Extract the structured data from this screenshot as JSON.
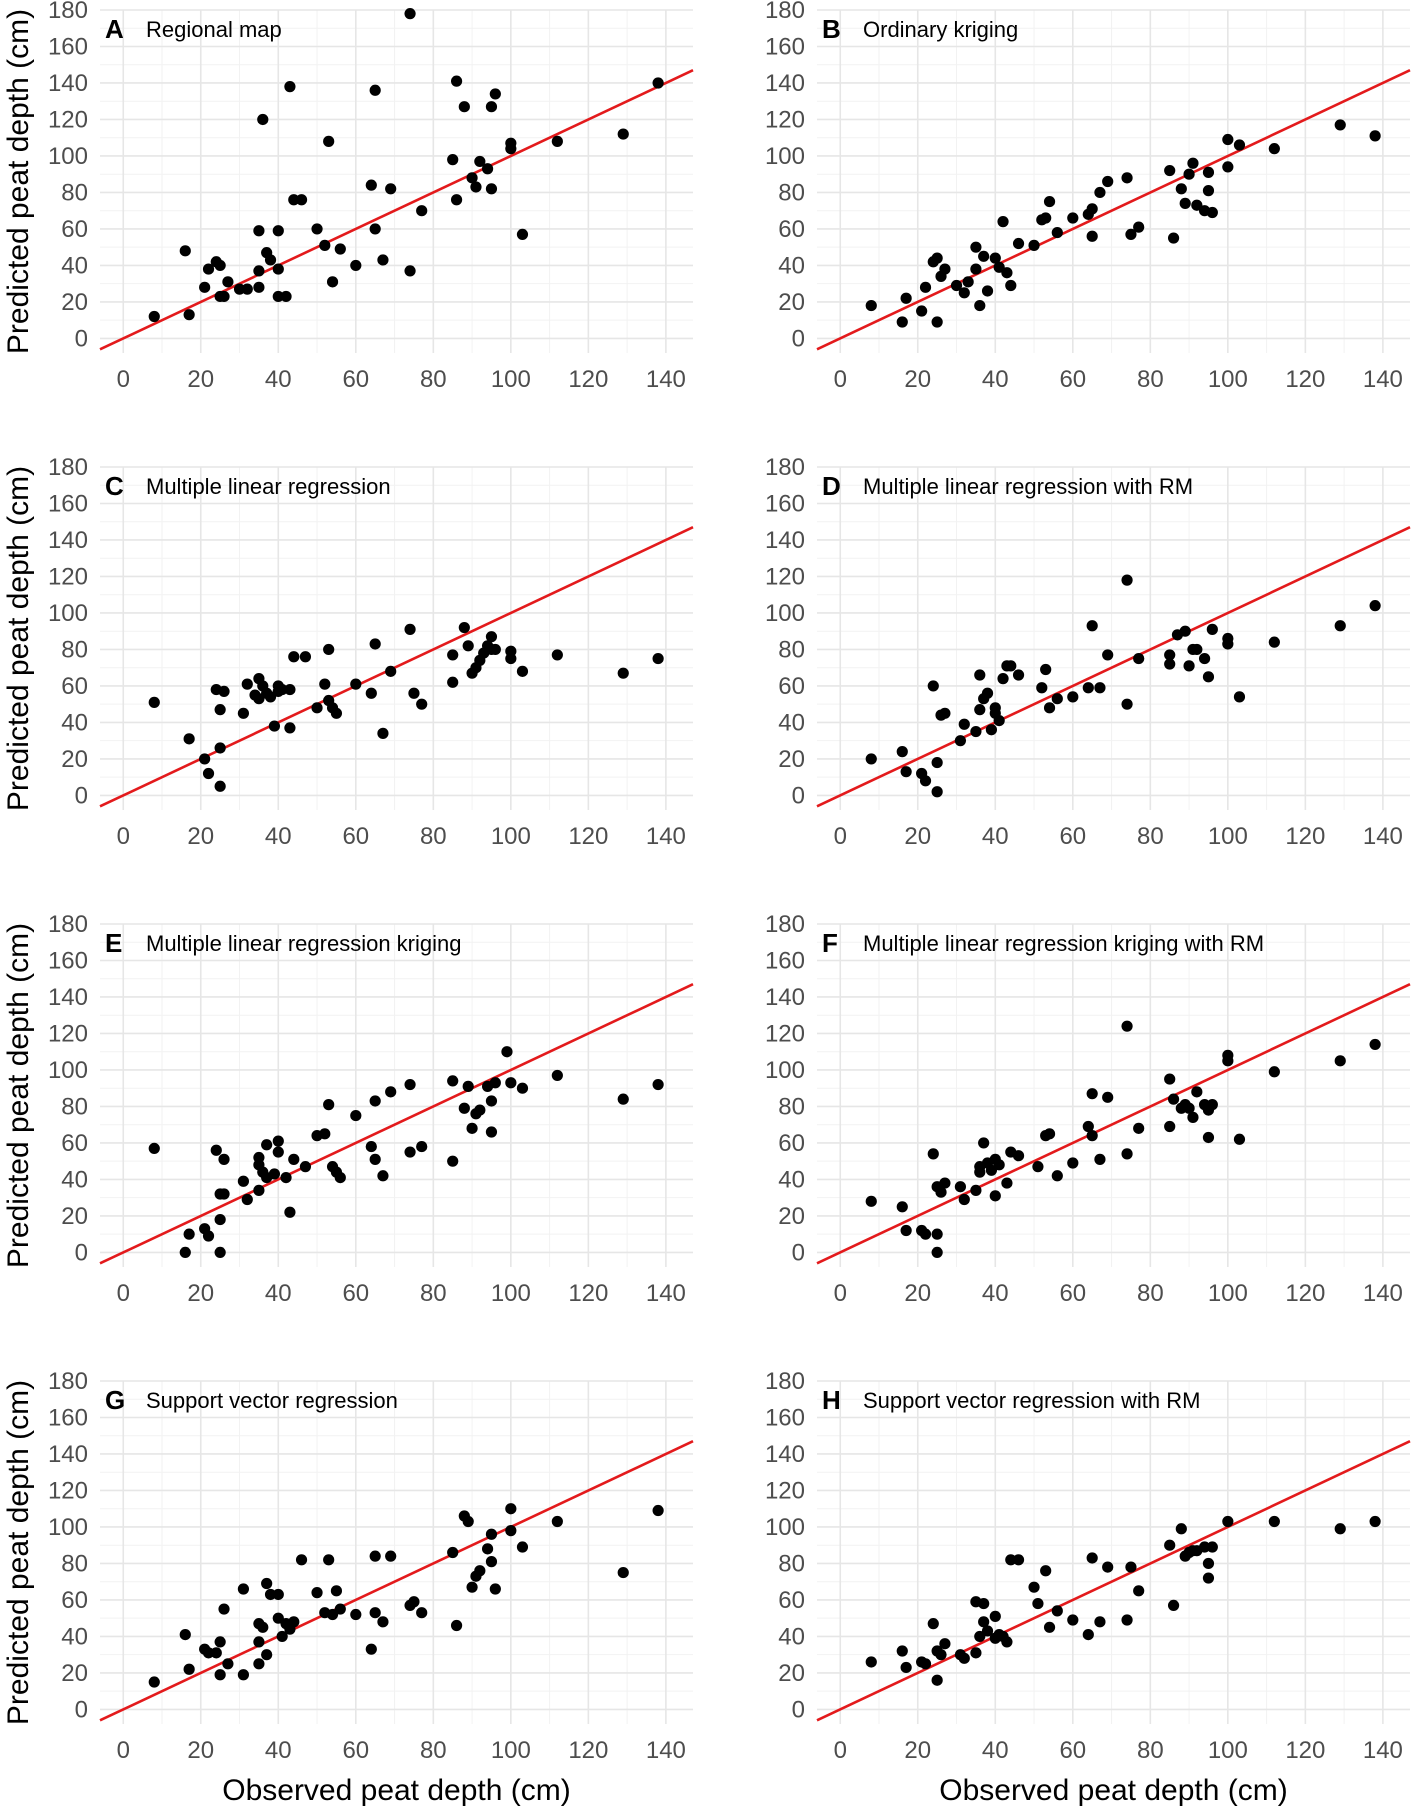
{
  "figure": {
    "xlabel": "Observed peat depth (cm)",
    "ylabel": "Predicted peat depth (cm)"
  },
  "colors": {
    "points": "#000000",
    "ref_line": "#e31a1c",
    "grid": "#e6e6e6"
  },
  "chart_data": [
    {
      "type": "scatter",
      "letter": "A",
      "title": "Regional map",
      "xlim": [
        -6,
        147
      ],
      "ylim": [
        -8,
        180
      ],
      "xticks": [
        0,
        20,
        40,
        60,
        80,
        100,
        120,
        140
      ],
      "yticks": [
        0,
        20,
        40,
        60,
        80,
        100,
        120,
        140,
        160,
        180
      ],
      "reference_line": {
        "slope": 1,
        "intercept": 0
      },
      "x": [
        8,
        16,
        17,
        21,
        22,
        24,
        25,
        25,
        26,
        27,
        30,
        32,
        35,
        35,
        35,
        36,
        37,
        38,
        40,
        40,
        40,
        42,
        43,
        44,
        46,
        50,
        52,
        53,
        54,
        56,
        60,
        64,
        65,
        65,
        67,
        69,
        74,
        74,
        77,
        85,
        86,
        86,
        88,
        90,
        91,
        92,
        94,
        95,
        95,
        96,
        100,
        100,
        103,
        112,
        129,
        138
      ],
      "y": [
        12,
        48,
        13,
        28,
        38,
        42,
        23,
        40,
        23,
        31,
        27,
        27,
        37,
        28,
        59,
        120,
        47,
        43,
        38,
        59,
        23,
        23,
        138,
        76,
        76,
        60,
        51,
        108,
        31,
        49,
        40,
        84,
        60,
        136,
        43,
        82,
        37,
        178,
        70,
        98,
        141,
        76,
        127,
        88,
        83,
        97,
        93,
        82,
        127,
        134,
        107,
        104,
        57,
        108,
        112,
        140
      ]
    },
    {
      "type": "scatter",
      "letter": "B",
      "title": "Ordinary kriging",
      "xlim": [
        -6,
        147
      ],
      "ylim": [
        -8,
        180
      ],
      "xticks": [
        0,
        20,
        40,
        60,
        80,
        100,
        120,
        140
      ],
      "yticks": [
        0,
        20,
        40,
        60,
        80,
        100,
        120,
        140,
        160,
        180
      ],
      "reference_line": {
        "slope": 1,
        "intercept": 0
      },
      "x": [
        8,
        16,
        17,
        21,
        22,
        24,
        25,
        25,
        26,
        27,
        30,
        32,
        33,
        35,
        35,
        36,
        37,
        38,
        40,
        41,
        42,
        43,
        44,
        46,
        50,
        52,
        53,
        54,
        56,
        60,
        64,
        65,
        65,
        67,
        69,
        74,
        75,
        77,
        85,
        86,
        88,
        89,
        90,
        91,
        92,
        94,
        95,
        95,
        96,
        100,
        100,
        103,
        112,
        129,
        138
      ],
      "y": [
        18,
        9,
        22,
        15,
        28,
        42,
        44,
        9,
        34,
        38,
        29,
        25,
        31,
        50,
        38,
        18,
        45,
        26,
        44,
        39,
        64,
        36,
        29,
        52,
        51,
        65,
        66,
        75,
        58,
        66,
        68,
        56,
        71,
        80,
        86,
        88,
        57,
        61,
        92,
        55,
        82,
        74,
        90,
        96,
        73,
        70,
        81,
        91,
        69,
        109,
        94,
        106,
        104,
        117,
        111
      ]
    },
    {
      "type": "scatter",
      "letter": "C",
      "title": "Multiple linear regression",
      "xlim": [
        -6,
        147
      ],
      "ylim": [
        -8,
        180
      ],
      "xticks": [
        0,
        20,
        40,
        60,
        80,
        100,
        120,
        140
      ],
      "yticks": [
        0,
        20,
        40,
        60,
        80,
        100,
        120,
        140,
        160,
        180
      ],
      "reference_line": {
        "slope": 1,
        "intercept": 0
      },
      "x": [
        8,
        17,
        21,
        22,
        24,
        25,
        25,
        25,
        26,
        31,
        32,
        34,
        35,
        35,
        36,
        37,
        38,
        39,
        40,
        40,
        41,
        43,
        43,
        44,
        47,
        50,
        52,
        53,
        53,
        54,
        55,
        60,
        64,
        65,
        67,
        69,
        74,
        75,
        77,
        85,
        85,
        88,
        89,
        90,
        91,
        92,
        93,
        94,
        95,
        95,
        96,
        100,
        100,
        103,
        112,
        129,
        138
      ],
      "y": [
        51,
        31,
        20,
        12,
        58,
        47,
        26,
        5,
        57,
        45,
        61,
        55,
        64,
        53,
        60,
        56,
        54,
        38,
        60,
        57,
        58,
        58,
        37,
        76,
        76,
        48,
        61,
        80,
        52,
        48,
        45,
        61,
        56,
        83,
        34,
        68,
        91,
        56,
        50,
        77,
        62,
        92,
        82,
        67,
        70,
        74,
        78,
        82,
        87,
        80,
        80,
        79,
        75,
        68,
        77,
        67,
        75
      ]
    },
    {
      "type": "scatter",
      "letter": "D",
      "title": "Multiple linear regression with RM",
      "xlim": [
        -6,
        147
      ],
      "ylim": [
        -8,
        180
      ],
      "xticks": [
        0,
        20,
        40,
        60,
        80,
        100,
        120,
        140
      ],
      "yticks": [
        0,
        20,
        40,
        60,
        80,
        100,
        120,
        140,
        160,
        180
      ],
      "reference_line": {
        "slope": 1,
        "intercept": 0
      },
      "x": [
        8,
        16,
        17,
        21,
        22,
        24,
        25,
        25,
        26,
        27,
        31,
        32,
        35,
        36,
        36,
        37,
        38,
        39,
        40,
        40,
        41,
        42,
        43,
        44,
        46,
        52,
        53,
        54,
        56,
        60,
        64,
        65,
        67,
        69,
        74,
        74,
        77,
        85,
        85,
        87,
        89,
        90,
        91,
        92,
        94,
        95,
        96,
        100,
        100,
        103,
        112,
        129,
        138
      ],
      "y": [
        20,
        24,
        13,
        12,
        8,
        60,
        18,
        2,
        44,
        45,
        30,
        39,
        35,
        47,
        66,
        53,
        56,
        36,
        48,
        45,
        41,
        64,
        71,
        71,
        66,
        59,
        69,
        48,
        53,
        54,
        59,
        93,
        59,
        77,
        118,
        50,
        75,
        77,
        72,
        88,
        90,
        71,
        80,
        80,
        75,
        65,
        91,
        86,
        83,
        54,
        84,
        93,
        104
      ]
    },
    {
      "type": "scatter",
      "letter": "E",
      "title": "Multiple linear regression kriging",
      "xlim": [
        -6,
        147
      ],
      "ylim": [
        -8,
        180
      ],
      "xticks": [
        0,
        20,
        40,
        60,
        80,
        100,
        120,
        140
      ],
      "yticks": [
        0,
        20,
        40,
        60,
        80,
        100,
        120,
        140,
        160,
        180
      ],
      "reference_line": {
        "slope": 1,
        "intercept": 0
      },
      "x": [
        8,
        16,
        17,
        21,
        22,
        24,
        25,
        25,
        25,
        26,
        26,
        31,
        32,
        35,
        35,
        35,
        36,
        37,
        37,
        39,
        40,
        40,
        42,
        43,
        44,
        47,
        50,
        52,
        53,
        54,
        55,
        56,
        60,
        64,
        65,
        65,
        67,
        69,
        74,
        74,
        77,
        85,
        85,
        88,
        89,
        90,
        91,
        92,
        94,
        95,
        95,
        96,
        99,
        100,
        103,
        112,
        129,
        138
      ],
      "y": [
        57,
        0,
        10,
        13,
        9,
        56,
        32,
        18,
        0,
        51,
        32,
        39,
        29,
        48,
        34,
        52,
        44,
        59,
        41,
        43,
        61,
        55,
        41,
        22,
        51,
        47,
        64,
        65,
        81,
        47,
        44,
        41,
        75,
        58,
        83,
        51,
        42,
        88,
        55,
        92,
        58,
        94,
        50,
        79,
        91,
        68,
        76,
        78,
        91,
        83,
        66,
        93,
        110,
        93,
        90,
        97,
        84,
        92
      ]
    },
    {
      "type": "scatter",
      "letter": "F",
      "title": "Multiple linear regression kriging with RM",
      "xlim": [
        -6,
        147
      ],
      "ylim": [
        -8,
        180
      ],
      "xticks": [
        0,
        20,
        40,
        60,
        80,
        100,
        120,
        140
      ],
      "yticks": [
        0,
        20,
        40,
        60,
        80,
        100,
        120,
        140,
        160,
        180
      ],
      "reference_line": {
        "slope": 1,
        "intercept": 0
      },
      "x": [
        8,
        16,
        17,
        21,
        22,
        24,
        25,
        25,
        25,
        26,
        27,
        31,
        32,
        35,
        36,
        36,
        37,
        38,
        39,
        40,
        40,
        41,
        43,
        44,
        46,
        51,
        53,
        54,
        56,
        60,
        64,
        65,
        65,
        67,
        69,
        74,
        74,
        77,
        85,
        85,
        86,
        88,
        89,
        90,
        91,
        92,
        94,
        95,
        95,
        96,
        100,
        100,
        103,
        112,
        129,
        138
      ],
      "y": [
        28,
        25,
        12,
        12,
        10,
        54,
        36,
        10,
        0,
        33,
        38,
        36,
        29,
        34,
        47,
        44,
        60,
        49,
        45,
        51,
        31,
        48,
        38,
        55,
        53,
        47,
        64,
        65,
        42,
        49,
        69,
        64,
        87,
        51,
        85,
        124,
        54,
        68,
        95,
        69,
        84,
        79,
        81,
        79,
        74,
        88,
        81,
        78,
        63,
        81,
        105,
        108,
        62,
        99,
        105,
        114
      ]
    },
    {
      "type": "scatter",
      "letter": "G",
      "title": "Support vector regression",
      "xlim": [
        -6,
        147
      ],
      "ylim": [
        -8,
        180
      ],
      "xticks": [
        0,
        20,
        40,
        60,
        80,
        100,
        120,
        140
      ],
      "yticks": [
        0,
        20,
        40,
        60,
        80,
        100,
        120,
        140,
        160,
        180
      ],
      "reference_line": {
        "slope": 1,
        "intercept": 0
      },
      "x": [
        8,
        16,
        17,
        21,
        22,
        24,
        25,
        25,
        26,
        27,
        31,
        31,
        35,
        35,
        35,
        36,
        37,
        37,
        38,
        40,
        40,
        41,
        42,
        43,
        44,
        46,
        50,
        52,
        53,
        54,
        55,
        56,
        60,
        64,
        65,
        65,
        67,
        69,
        74,
        75,
        77,
        85,
        86,
        88,
        89,
        90,
        91,
        92,
        94,
        95,
        95,
        96,
        100,
        100,
        103,
        112,
        129,
        138
      ],
      "y": [
        15,
        41,
        22,
        33,
        31,
        31,
        19,
        37,
        55,
        25,
        66,
        19,
        37,
        47,
        25,
        45,
        69,
        30,
        63,
        63,
        50,
        40,
        47,
        44,
        48,
        82,
        64,
        53,
        82,
        52,
        65,
        55,
        52,
        33,
        84,
        53,
        48,
        84,
        57,
        59,
        53,
        86,
        46,
        106,
        103,
        67,
        73,
        76,
        88,
        81,
        96,
        66,
        110,
        98,
        89,
        103,
        75,
        109
      ]
    },
    {
      "type": "scatter",
      "letter": "H",
      "title": "Support vector regression with RM",
      "xlim": [
        -6,
        147
      ],
      "ylim": [
        -8,
        180
      ],
      "xticks": [
        0,
        20,
        40,
        60,
        80,
        100,
        120,
        140
      ],
      "yticks": [
        0,
        20,
        40,
        60,
        80,
        100,
        120,
        140,
        160,
        180
      ],
      "reference_line": {
        "slope": 1,
        "intercept": 0
      },
      "x": [
        8,
        16,
        17,
        21,
        22,
        24,
        25,
        25,
        26,
        27,
        31,
        32,
        35,
        35,
        36,
        37,
        37,
        38,
        40,
        40,
        41,
        42,
        43,
        44,
        46,
        50,
        51,
        53,
        54,
        56,
        60,
        64,
        65,
        67,
        69,
        74,
        75,
        77,
        85,
        86,
        88,
        89,
        90,
        91,
        92,
        94,
        95,
        95,
        96,
        100,
        112,
        129,
        138
      ],
      "y": [
        26,
        32,
        23,
        26,
        25,
        47,
        16,
        32,
        30,
        36,
        30,
        28,
        59,
        31,
        40,
        58,
        48,
        43,
        39,
        51,
        41,
        40,
        37,
        82,
        82,
        67,
        58,
        76,
        45,
        54,
        49,
        41,
        83,
        48,
        78,
        49,
        78,
        65,
        90,
        57,
        99,
        84,
        86,
        87,
        87,
        89,
        80,
        72,
        89,
        103,
        103,
        99,
        103
      ]
    }
  ]
}
